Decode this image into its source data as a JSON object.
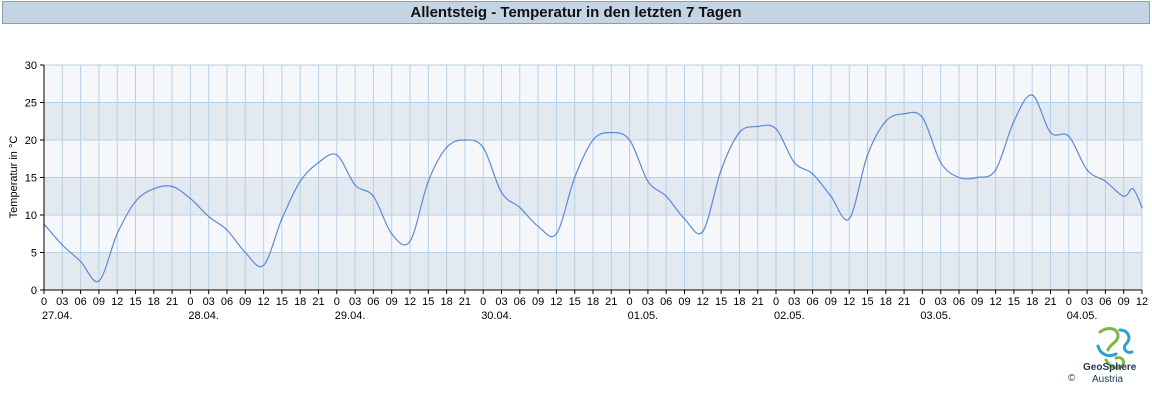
{
  "page": {
    "title": "Allentsteig - Temperatur in den letzten 7 Tagen"
  },
  "logo": {
    "name": "GeoSphere",
    "subtitle": "Austria",
    "copyright": "©"
  },
  "colors": {
    "line": "#5b8bd6",
    "band_dark": "#e3e9f1",
    "band_light": "#f5f7fa",
    "grid": "#b8d0e6",
    "title_bg": "#c5d4e2"
  },
  "chart_data": {
    "type": "line",
    "title": "Allentsteig - Temperatur in den letzten 7 Tagen",
    "xlabel": "",
    "ylabel": "Temperatur in °C",
    "ylim": [
      0,
      30
    ],
    "yticks": [
      0,
      5,
      10,
      15,
      20,
      25,
      30
    ],
    "xlim": [
      "27.04. 00:00",
      "04.05. 12:00"
    ],
    "x_hour_ticks": [
      "0",
      "03",
      "06",
      "09",
      "12",
      "15",
      "18",
      "21",
      "0",
      "03",
      "06",
      "09",
      "12",
      "15",
      "18",
      "21",
      "0",
      "03",
      "06",
      "09",
      "12",
      "15",
      "18",
      "21",
      "0",
      "03",
      "06",
      "09",
      "12",
      "15",
      "18",
      "21",
      "0",
      "03",
      "06",
      "09",
      "12",
      "15",
      "18",
      "21",
      "0",
      "03",
      "06",
      "09",
      "12",
      "15",
      "18",
      "21",
      "0",
      "03",
      "06",
      "09",
      "12",
      "15",
      "18",
      "21",
      "0",
      "03",
      "06",
      "09",
      "12"
    ],
    "x_day_labels": [
      "27.04.",
      "28.04.",
      "29.04.",
      "30.04.",
      "01.05.",
      "02.05.",
      "03.05.",
      "04.05."
    ],
    "grid": true,
    "series": [
      {
        "x": [
          "27.04. 00:00",
          "27.04. 03:00",
          "27.04. 06:00",
          "27.04. 09:00",
          "27.04. 12:00",
          "27.04. 15:00",
          "27.04. 18:00",
          "27.04. 21:00",
          "28.04. 00:00",
          "28.04. 03:00",
          "28.04. 06:00",
          "28.04. 09:00",
          "28.04. 12:00",
          "28.04. 15:00",
          "28.04. 18:00",
          "28.04. 21:00",
          "29.04. 00:00",
          "29.04. 03:00",
          "29.04. 06:00",
          "29.04. 09:00",
          "29.04. 12:00",
          "29.04. 15:00",
          "29.04. 18:00",
          "29.04. 21:00",
          "30.04. 00:00",
          "30.04. 03:00",
          "30.04. 06:00",
          "30.04. 09:00",
          "30.04. 12:00",
          "30.04. 15:00",
          "30.04. 18:00",
          "30.04. 21:00",
          "01.05. 00:00",
          "01.05. 03:00",
          "01.05. 06:00",
          "01.05. 09:00",
          "01.05. 12:00",
          "01.05. 15:00",
          "01.05. 18:00",
          "01.05. 21:00",
          "02.05. 00:00",
          "02.05. 03:00",
          "02.05. 06:00",
          "02.05. 09:00",
          "02.05. 12:00",
          "02.05. 15:00",
          "02.05. 18:00",
          "02.05. 21:00",
          "03.05. 00:00",
          "03.05. 03:00",
          "03.05. 06:00",
          "03.05. 09:00",
          "03.05. 12:00",
          "03.05. 15:00",
          "03.05. 18:00",
          "03.05. 21:00",
          "04.05. 00:00",
          "04.05. 03:00",
          "04.05. 06:00",
          "04.05. 09:00",
          "04.05. 10:30",
          "04.05. 12:00"
        ],
        "values": [
          8.8,
          6.0,
          3.8,
          1.2,
          7.5,
          11.8,
          13.5,
          13.8,
          12.2,
          9.8,
          8.0,
          5.0,
          3.3,
          9.5,
          14.5,
          17.0,
          18.0,
          14.0,
          12.5,
          7.5,
          6.5,
          14.5,
          19.0,
          20.0,
          19.0,
          13.0,
          11.0,
          8.5,
          7.5,
          15.0,
          20.0,
          21.0,
          20.0,
          14.5,
          12.5,
          9.5,
          7.8,
          16.0,
          21.0,
          21.8,
          21.5,
          17.0,
          15.5,
          12.5,
          9.5,
          18.0,
          22.5,
          23.5,
          23.0,
          17.0,
          15.0,
          15.0,
          16.0,
          22.5,
          26.0,
          21.0,
          20.5,
          16.0,
          14.5,
          12.5,
          13.5,
          11.0
        ]
      }
    ]
  }
}
